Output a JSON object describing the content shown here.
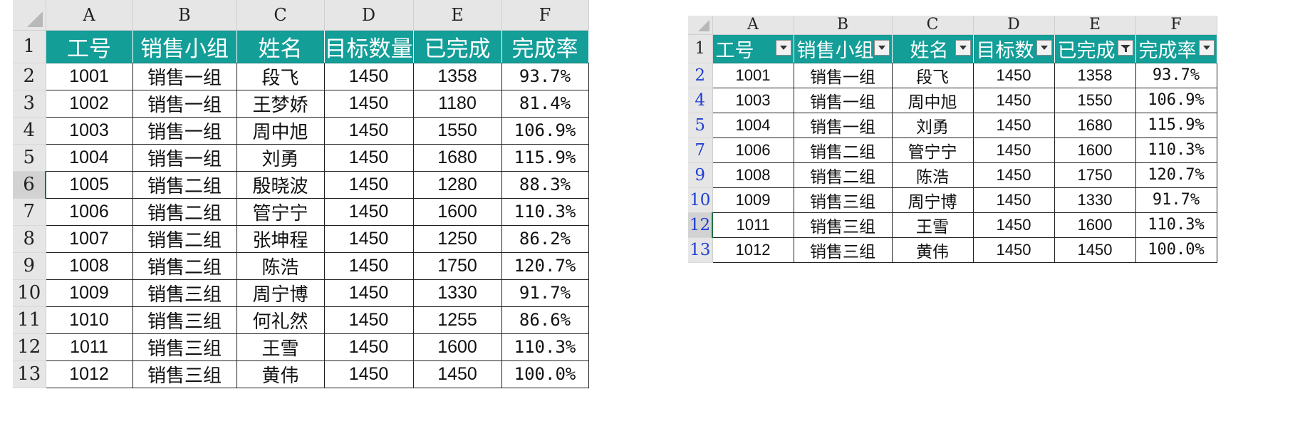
{
  "column_letters": [
    "A",
    "B",
    "C",
    "D",
    "E",
    "F"
  ],
  "headers": [
    "工号",
    "销售小组",
    "姓名",
    "目标数量",
    "已完成",
    "完成率"
  ],
  "left_sheet": {
    "selected_row": "6",
    "rows": [
      {
        "row": "2",
        "id": "1001",
        "group": "销售一组",
        "name": "段飞",
        "target": "1450",
        "done": "1358",
        "rate": "93.7%"
      },
      {
        "row": "3",
        "id": "1002",
        "group": "销售一组",
        "name": "王梦娇",
        "target": "1450",
        "done": "1180",
        "rate": "81.4%"
      },
      {
        "row": "4",
        "id": "1003",
        "group": "销售一组",
        "name": "周中旭",
        "target": "1450",
        "done": "1550",
        "rate": "106.9%"
      },
      {
        "row": "5",
        "id": "1004",
        "group": "销售一组",
        "name": "刘勇",
        "target": "1450",
        "done": "1680",
        "rate": "115.9%"
      },
      {
        "row": "6",
        "id": "1005",
        "group": "销售二组",
        "name": "殷晓波",
        "target": "1450",
        "done": "1280",
        "rate": "88.3%"
      },
      {
        "row": "7",
        "id": "1006",
        "group": "销售二组",
        "name": "管宁宁",
        "target": "1450",
        "done": "1600",
        "rate": "110.3%"
      },
      {
        "row": "8",
        "id": "1007",
        "group": "销售二组",
        "name": "张坤程",
        "target": "1450",
        "done": "1250",
        "rate": "86.2%"
      },
      {
        "row": "9",
        "id": "1008",
        "group": "销售二组",
        "name": "陈浩",
        "target": "1450",
        "done": "1750",
        "rate": "120.7%"
      },
      {
        "row": "10",
        "id": "1009",
        "group": "销售三组",
        "name": "周宁博",
        "target": "1450",
        "done": "1330",
        "rate": "91.7%"
      },
      {
        "row": "11",
        "id": "1010",
        "group": "销售三组",
        "name": "何礼然",
        "target": "1450",
        "done": "1255",
        "rate": "86.6%"
      },
      {
        "row": "12",
        "id": "1011",
        "group": "销售三组",
        "name": "王雪",
        "target": "1450",
        "done": "1600",
        "rate": "110.3%"
      },
      {
        "row": "13",
        "id": "1012",
        "group": "销售三组",
        "name": "黄伟",
        "target": "1450",
        "done": "1450",
        "rate": "100.0%"
      }
    ]
  },
  "right_sheet": {
    "header_visible": [
      "工号",
      "销售小组",
      "姓名",
      "目标数",
      "已完成",
      "完成率"
    ],
    "filtered_column": "E",
    "selected_row": "12",
    "rows": [
      {
        "row": "2",
        "id": "1001",
        "group": "销售一组",
        "name": "段飞",
        "target": "1450",
        "done": "1358",
        "rate": "93.7%"
      },
      {
        "row": "4",
        "id": "1003",
        "group": "销售一组",
        "name": "周中旭",
        "target": "1450",
        "done": "1550",
        "rate": "106.9%"
      },
      {
        "row": "5",
        "id": "1004",
        "group": "销售一组",
        "name": "刘勇",
        "target": "1450",
        "done": "1680",
        "rate": "115.9%"
      },
      {
        "row": "7",
        "id": "1006",
        "group": "销售二组",
        "name": "管宁宁",
        "target": "1450",
        "done": "1600",
        "rate": "110.3%"
      },
      {
        "row": "9",
        "id": "1008",
        "group": "销售二组",
        "name": "陈浩",
        "target": "1450",
        "done": "1750",
        "rate": "120.7%"
      },
      {
        "row": "10",
        "id": "1009",
        "group": "销售三组",
        "name": "周宁博",
        "target": "1450",
        "done": "1330",
        "rate": "91.7%"
      },
      {
        "row": "12",
        "id": "1011",
        "group": "销售三组",
        "name": "王雪",
        "target": "1450",
        "done": "1600",
        "rate": "110.3%"
      },
      {
        "row": "13",
        "id": "1012",
        "group": "销售三组",
        "name": "黄伟",
        "target": "1450",
        "done": "1450",
        "rate": "100.0%"
      }
    ]
  },
  "colors": {
    "header_teal": "#139e98",
    "header_text": "#ffffff",
    "sheet_chrome": "#e6e6e6",
    "filtered_row_number": "#1f3fd1",
    "selection_green": "#217346"
  },
  "icons": {
    "filter_dropdown": "chevron-down-icon",
    "filter_active": "funnel-icon"
  }
}
